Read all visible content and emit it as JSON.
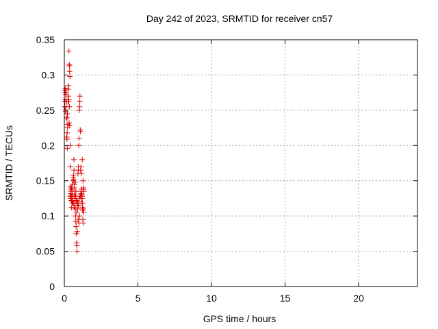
{
  "chart_data": {
    "type": "scatter",
    "title": "Day 242 of 2023, SRMTID for receiver cn57",
    "xlabel": "GPS time / hours",
    "ylabel": "SRMTID / TECUs",
    "xlim": [
      0,
      24
    ],
    "ylim": [
      0,
      0.35
    ],
    "xticks": [
      0,
      5,
      10,
      15,
      20
    ],
    "yticks": [
      0,
      0.05,
      0.1,
      0.15,
      0.2,
      0.25,
      0.3,
      0.35
    ],
    "xtick_labels": [
      "0",
      "5",
      "10",
      "15",
      "20"
    ],
    "ytick_labels": [
      "0",
      "0.05",
      "0.1",
      "0.15",
      "0.2",
      "0.25",
      "0.3",
      "0.35"
    ],
    "grid": true,
    "marker": "+",
    "color": "#e00000",
    "series": [
      {
        "x": [
          0.02,
          0.03,
          0.05,
          0.06,
          0.08,
          0.1,
          0.11,
          0.13,
          0.15,
          0.16,
          0.18,
          0.2,
          0.21,
          0.23,
          0.25,
          0.26,
          0.28,
          0.3,
          0.31,
          0.33,
          0.35,
          0.36,
          0.38,
          0.4,
          0.41,
          0.43,
          0.45,
          0.46,
          0.48,
          0.5,
          0.51,
          0.53,
          0.55,
          0.56,
          0.58,
          0.6,
          0.61,
          0.63,
          0.65,
          0.66,
          0.68,
          0.7,
          0.71,
          0.73,
          0.75,
          0.76,
          0.78,
          0.8,
          0.81,
          0.83,
          0.85,
          0.86,
          0.88,
          0.9,
          0.91,
          0.93,
          0.95,
          0.96,
          0.98,
          1.0,
          1.01,
          1.03,
          1.05,
          1.06,
          1.08,
          1.1,
          1.11,
          1.13,
          1.15,
          1.16,
          1.18,
          1.2,
          1.21,
          1.23,
          1.25,
          1.26,
          1.28,
          1.3,
          1.31,
          1.33,
          0.12,
          0.18,
          0.22,
          0.33,
          0.36,
          0.42,
          0.47,
          0.52,
          0.57,
          0.62,
          0.67,
          0.72,
          0.77,
          0.82,
          0.87,
          0.92,
          0.97,
          1.02,
          1.07,
          1.12,
          1.17,
          1.22,
          1.27,
          1.32,
          0.06,
          0.14,
          0.27,
          0.34,
          0.44,
          0.54,
          0.64,
          0.74,
          0.84,
          0.94,
          1.04,
          1.14,
          1.24,
          0.09,
          0.19,
          0.29,
          0.39,
          0.49,
          0.59,
          0.69,
          0.79,
          0.89,
          0.99,
          1.09,
          1.19,
          1.29
        ],
        "y": [
          0.255,
          0.262,
          0.278,
          0.281,
          0.25,
          0.248,
          0.272,
          0.275,
          0.238,
          0.212,
          0.209,
          0.196,
          0.245,
          0.23,
          0.262,
          0.28,
          0.285,
          0.265,
          0.334,
          0.315,
          0.313,
          0.305,
          0.298,
          0.2,
          0.17,
          0.135,
          0.125,
          0.13,
          0.112,
          0.14,
          0.128,
          0.12,
          0.145,
          0.118,
          0.135,
          0.15,
          0.155,
          0.158,
          0.18,
          0.165,
          0.14,
          0.13,
          0.125,
          0.118,
          0.11,
          0.1,
          0.092,
          0.085,
          0.075,
          0.062,
          0.058,
          0.05,
          0.12,
          0.115,
          0.11,
          0.16,
          0.165,
          0.17,
          0.2,
          0.21,
          0.25,
          0.255,
          0.262,
          0.27,
          0.222,
          0.22,
          0.165,
          0.17,
          0.16,
          0.135,
          0.13,
          0.128,
          0.125,
          0.112,
          0.108,
          0.095,
          0.09,
          0.14,
          0.138,
          0.135,
          0.255,
          0.24,
          0.226,
          0.232,
          0.228,
          0.142,
          0.138,
          0.125,
          0.12,
          0.118,
          0.112,
          0.13,
          0.128,
          0.122,
          0.12,
          0.118,
          0.115,
          0.125,
          0.128,
          0.132,
          0.138,
          0.18,
          0.15,
          0.105,
          0.275,
          0.262,
          0.27,
          0.255,
          0.132,
          0.128,
          0.152,
          0.148,
          0.105,
          0.095,
          0.1,
          0.12,
          0.118,
          0.265,
          0.218,
          0.262,
          0.128,
          0.122,
          0.118,
          0.145,
          0.135,
          0.078,
          0.09,
          0.128,
          0.13,
          0.11
        ]
      }
    ]
  }
}
